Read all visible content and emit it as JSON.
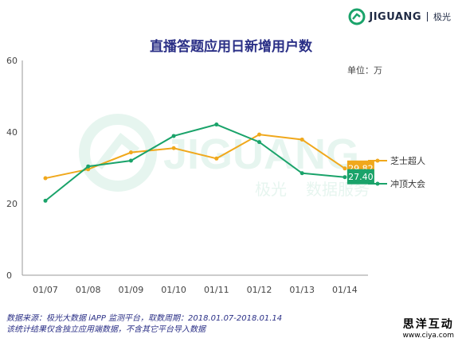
{
  "brand": {
    "name": "JIGUANG",
    "sub": "极光"
  },
  "watermark": {
    "name": "JIGUANG",
    "sub1": "极光",
    "sub2": "数据服务"
  },
  "chart_data": {
    "type": "line",
    "title": "直播答题应用日新增用户数",
    "unit": "单位：万",
    "categories": [
      "01/07",
      "01/08",
      "01/09",
      "01/10",
      "01/11",
      "01/12",
      "01/13",
      "01/14"
    ],
    "y_ticks": [
      "0",
      "20",
      "40",
      "60"
    ],
    "ylim": [
      0,
      60
    ],
    "grid": false,
    "legend_position": "right",
    "series": [
      {
        "name": "芝士超人",
        "color": "#f0a81c",
        "values": [
          27.1,
          29.6,
          34.3,
          35.5,
          32.6,
          39.3,
          37.9,
          29.82
        ],
        "end_label": "29.82"
      },
      {
        "name": "冲顶大会",
        "color": "#1aa36a",
        "values": [
          20.8,
          30.4,
          32.0,
          38.9,
          42.1,
          37.2,
          28.5,
          27.4
        ],
        "end_label": "27.40"
      }
    ]
  },
  "footer": {
    "line1": "数据来源：极光大数据 iAPP 监测平台，取数周期：2018.01.07-2018.01.14",
    "line2": "该统计结果仅含独立应用端数据，不含其它平台导入数据"
  },
  "stamp": {
    "main": "思洋互动",
    "url": "www.ciya.com"
  }
}
